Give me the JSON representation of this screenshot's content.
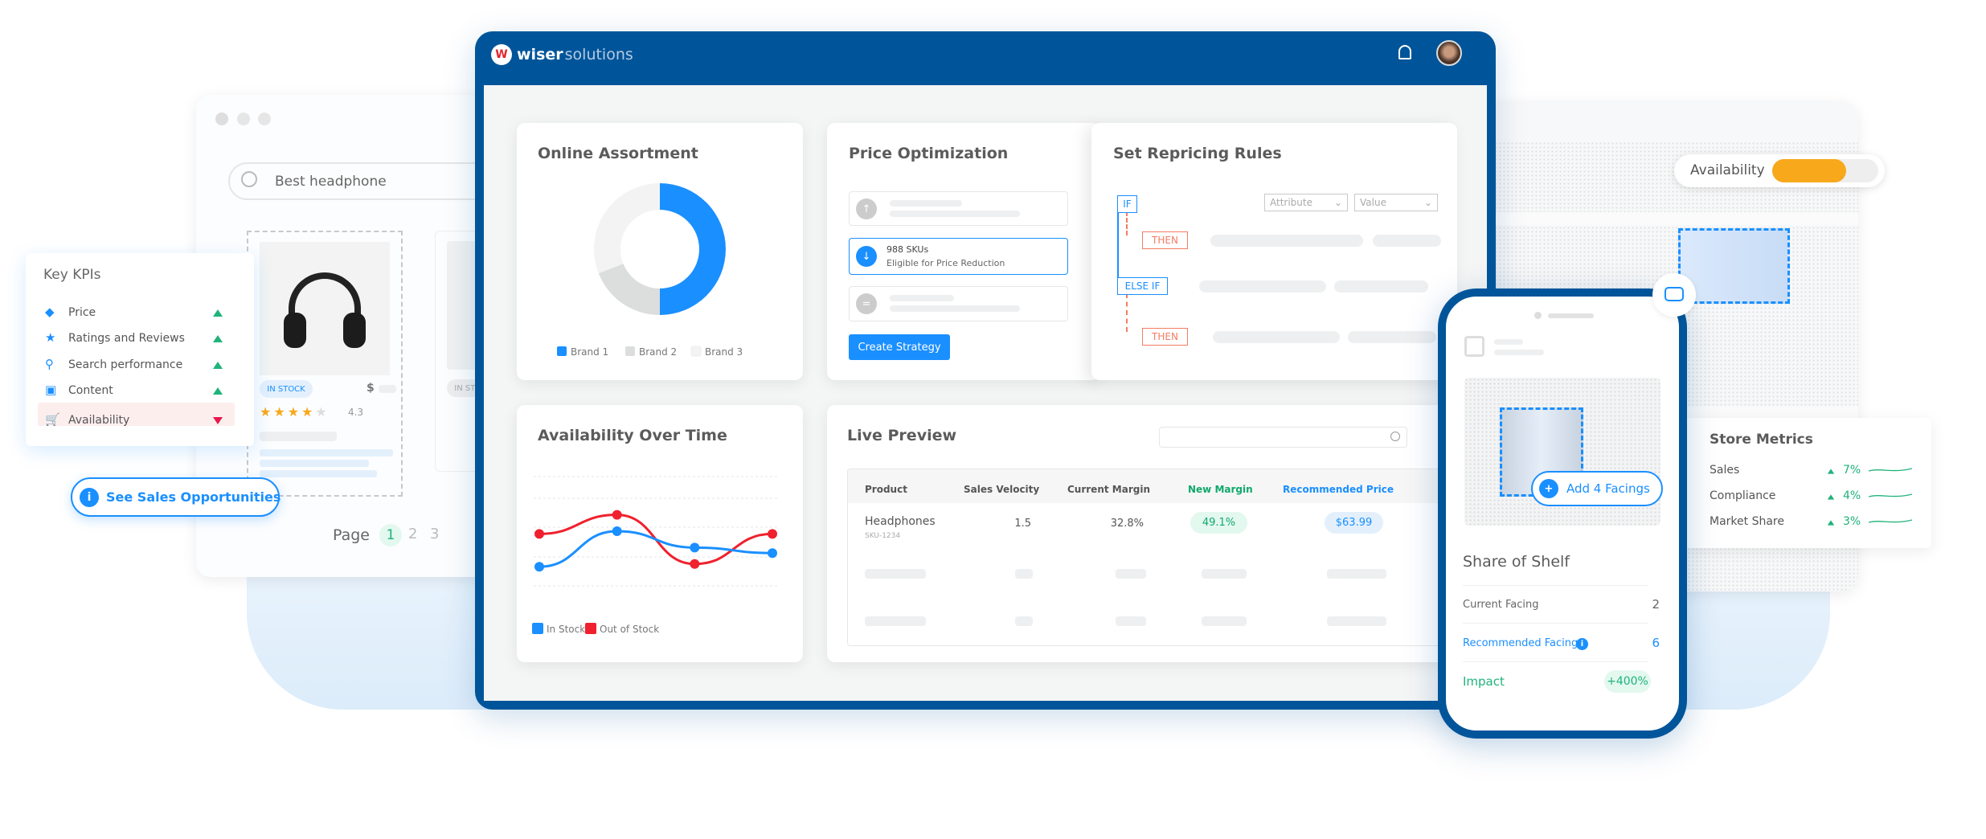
{
  "colors": {
    "brand_blue": "#00559a",
    "accent": "#1a8fff",
    "green": "#1fb37a",
    "red": "#e8174c",
    "orange": "#f7a81b"
  },
  "browser": {
    "search_value": "Best headphone",
    "product": {
      "stock_badge": "IN STOCK",
      "price_symbol": "$",
      "rating": "4.3",
      "stars": 4
    },
    "second_product": {
      "stock_badge": "IN STOCK"
    },
    "pagination": {
      "label": "Page",
      "pages": [
        "1",
        "2",
        "3"
      ],
      "current": "1"
    }
  },
  "kpis": {
    "title": "Key KPIs",
    "items": [
      {
        "label": "Price",
        "icon": "tag-icon",
        "trend": "up"
      },
      {
        "label": "Ratings and Reviews",
        "icon": "star-icon",
        "trend": "up"
      },
      {
        "label": "Search performance",
        "icon": "search-icon",
        "trend": "up"
      },
      {
        "label": "Content",
        "icon": "image-icon",
        "trend": "up"
      },
      {
        "label": "Availability",
        "icon": "cart-icon",
        "trend": "down"
      }
    ]
  },
  "sales_button": {
    "label": "See Sales Opportunities",
    "icon": "info-icon"
  },
  "app": {
    "logo_bold": "wiser",
    "logo_light": "solutions",
    "logo_mark": "W"
  },
  "assortment": {
    "title": "Online Assortment"
  },
  "availability_chart": {
    "title": "Availability Over Time"
  },
  "chart_data": [
    {
      "type": "pie",
      "title": "Online Assortment",
      "donut": true,
      "categories": [
        "Brand 1",
        "Brand 2",
        "Brand 3"
      ],
      "values": [
        50,
        19,
        31
      ],
      "colors": [
        "#1a8fff",
        "#dcdddd",
        "#f3f3f3"
      ],
      "legend": "bottom"
    },
    {
      "type": "line",
      "title": "Availability Over Time",
      "x": [
        1,
        2,
        3,
        4
      ],
      "ylim": [
        0,
        4
      ],
      "grid": true,
      "legend": "bottom",
      "series": [
        {
          "name": "In Stock",
          "values": [
            0.7,
            2.0,
            1.4,
            1.2
          ],
          "color": "#1a8fff"
        },
        {
          "name": "Out of Stock",
          "values": [
            1.9,
            2.6,
            0.8,
            1.9
          ],
          "color": "#f0212e"
        }
      ]
    }
  ],
  "price_opt": {
    "title": "Price Optimization",
    "highlight_title": "988 SKUs",
    "highlight_sub": "Eligible for Price Reduction",
    "button": "Create Strategy"
  },
  "repricing": {
    "title": "Set Repricing Rules",
    "if": "IF",
    "then": "THEN",
    "else_if": "ELSE IF",
    "attribute": "Attribute",
    "value": "Value"
  },
  "live_preview": {
    "title": "Live Preview",
    "search_placeholder": "",
    "columns": [
      "Product",
      "Sales Velocity",
      "Current Margin",
      "New Margin",
      "Recommended Price"
    ],
    "row": {
      "product": "Headphones",
      "sku": "SKU-1234",
      "sales_velocity": "1.5",
      "current_margin": "32.8%",
      "new_margin": "49.1%",
      "recommended_price": "$63.99"
    }
  },
  "store": {
    "availability_label": "Availability",
    "availability_level": 0.7
  },
  "store_metrics": {
    "title": "Store Metrics",
    "items": [
      {
        "label": "Sales",
        "value": "7%"
      },
      {
        "label": "Compliance",
        "value": "4%"
      },
      {
        "label": "Market Share",
        "value": "3%"
      }
    ]
  },
  "phone": {
    "add_facings": "Add 4 Facings",
    "share_title": "Share of Shelf",
    "current_label": "Current Facing",
    "current_value": "2",
    "recommended_label": "Recommended Facing",
    "recommended_value": "6",
    "impact_label": "Impact",
    "impact_value": "+400%"
  }
}
